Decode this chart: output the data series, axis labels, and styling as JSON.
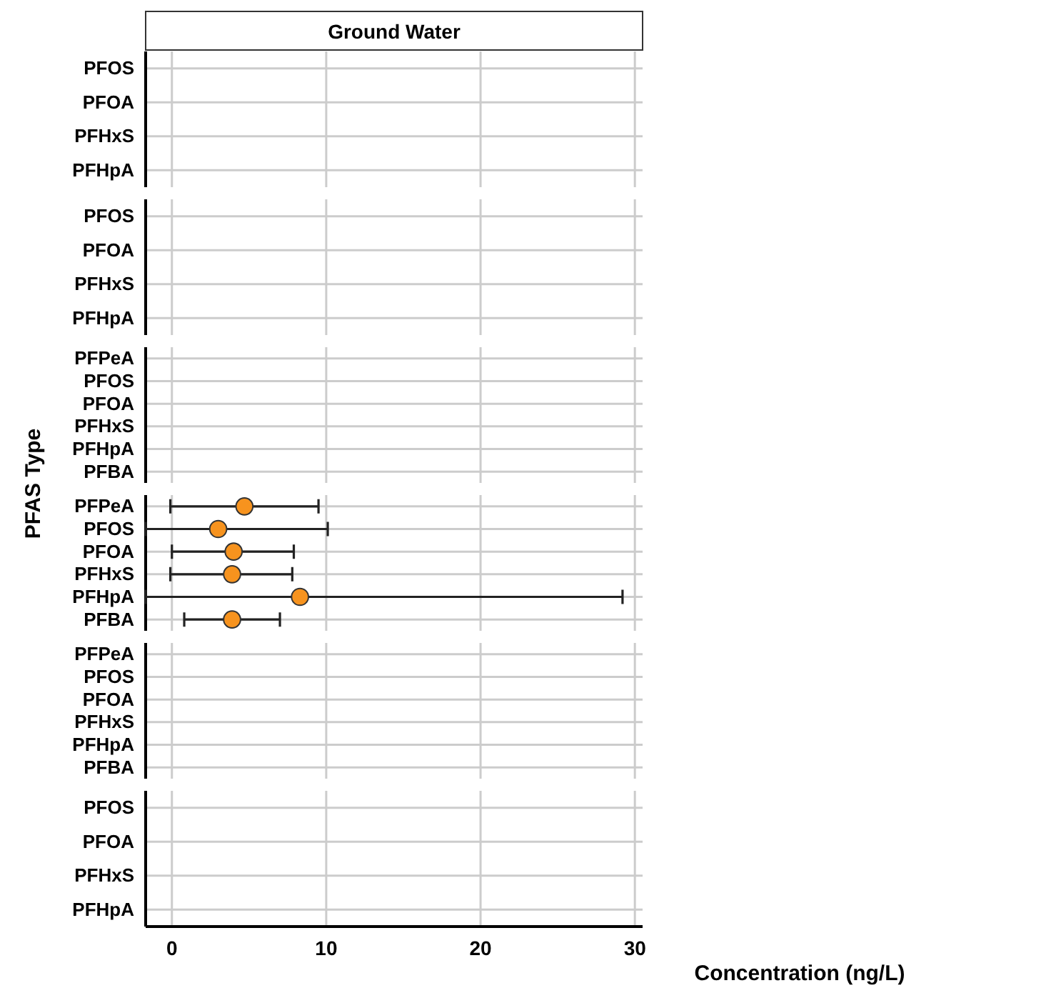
{
  "chart_data": [
    {
      "type": "scatter",
      "orientation": "horizontal",
      "title": "Ground Water",
      "categories": [
        "PFOS",
        "PFOA",
        "PFHxS",
        "PFHpA"
      ],
      "values": [
        null,
        null,
        null,
        null
      ],
      "xlim": [
        -1.7,
        30.5
      ],
      "xticks": [
        0,
        10,
        20,
        30
      ],
      "grid": true,
      "tick_labels": "y",
      "marker": "circle"
    },
    {
      "type": "scatter",
      "orientation": "horizontal",
      "categories": [
        "PFOS",
        "PFOA",
        "PFHxS",
        "PFHpA"
      ],
      "values": [
        null,
        null,
        null,
        null
      ],
      "xlim": [
        -1.7,
        30.5
      ],
      "xticks": [
        0,
        10,
        20,
        30
      ],
      "grid": true,
      "tick_labels": "y",
      "marker": "circle"
    },
    {
      "type": "scatter",
      "orientation": "horizontal",
      "ylabel": "PFAS Type",
      "categories": [
        "PFPeA",
        "PFOS",
        "PFOA",
        "PFHxS",
        "PFHpA",
        "PFBA"
      ],
      "values": [
        null,
        null,
        null,
        null,
        null,
        null
      ],
      "xlim": [
        -1.7,
        30.5
      ],
      "xticks": [
        0,
        10,
        20,
        30
      ],
      "grid": true,
      "tick_labels": "y",
      "marker": "circle"
    },
    {
      "type": "scatter",
      "orientation": "horizontal",
      "categories": [
        "PFPeA",
        "PFOS",
        "PFOA",
        "PFHxS",
        "PFHpA",
        "PFBA"
      ],
      "series": [
        {
          "color": "#f7931e",
          "values": [
            4.7,
            3.0,
            4.0,
            3.9,
            8.3,
            3.9
          ],
          "errors": [
            [
              -0.1,
              9.5
            ],
            [
              -1.7,
              10.1
            ],
            [
              0.0,
              7.9
            ],
            [
              -0.1,
              7.8
            ],
            [
              -1.7,
              29.2
            ],
            [
              0.8,
              7.0
            ]
          ]
        }
      ],
      "xlim": [
        -1.7,
        30.5
      ],
      "xticks": [
        0,
        10,
        20,
        30
      ],
      "grid": true,
      "tick_labels": "y",
      "marker": "circle"
    },
    {
      "type": "scatter",
      "orientation": "horizontal",
      "categories": [
        "PFPeA",
        "PFOS",
        "PFOA",
        "PFHxS",
        "PFHpA",
        "PFBA"
      ],
      "values": [
        null,
        null,
        null,
        null,
        null,
        null
      ],
      "xlim": [
        -1.7,
        30.5
      ],
      "xticks": [
        0,
        10,
        20,
        30
      ],
      "grid": true,
      "tick_labels": "y",
      "marker": "circle"
    },
    {
      "type": "scatter",
      "orientation": "horizontal",
      "xlabel": "Concentration (ng/L)",
      "categories": [
        "PFOS",
        "PFOA",
        "PFHxS",
        "PFHpA"
      ],
      "values": [
        null,
        null,
        null,
        null
      ],
      "xlim": [
        -1.7,
        30.5
      ],
      "xticks": [
        0,
        10,
        20,
        30
      ],
      "grid": true,
      "marker": "circle"
    }
  ]
}
